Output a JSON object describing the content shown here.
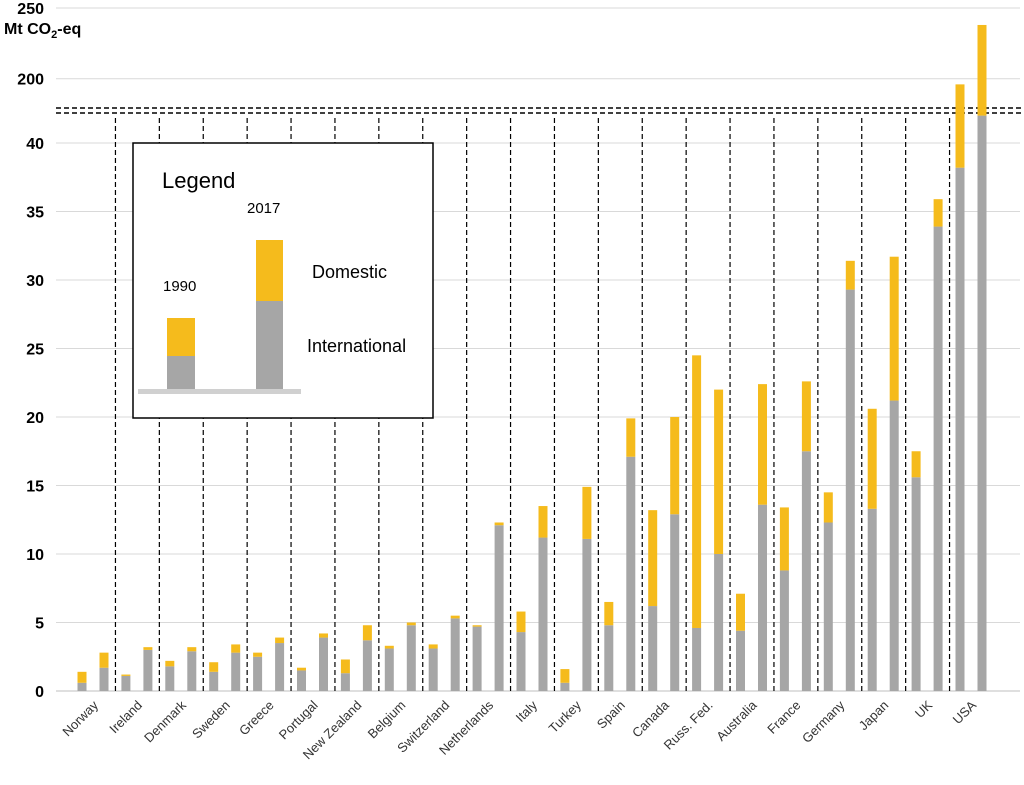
{
  "chart_data": {
    "type": "bar",
    "ylabel": "Mt CO₂-eq",
    "yticks": [
      0,
      5,
      10,
      15,
      20,
      25,
      30,
      35,
      40,
      200,
      250
    ],
    "axis_break": {
      "lower_range": [
        0,
        42
      ],
      "upper_range": [
        180,
        250
      ]
    },
    "grid": true,
    "legend": {
      "title": "Legend",
      "position": "top-left",
      "year_labels": [
        "1990",
        "2017"
      ],
      "components": [
        "Domestic",
        "International"
      ]
    },
    "colors": {
      "International": "#a6a6a6",
      "Domestic": "#f5bb1c",
      "grid": "#d9d9d9"
    },
    "categories": [
      "Norway",
      "Ireland",
      "Denmark",
      "Sweden",
      "Greece",
      "Portugal",
      "New Zealand",
      "Belgium",
      "Switzerland",
      "Netherlands",
      "Italy",
      "Turkey",
      "Spain",
      "Canada",
      "Russ. Fed.",
      "Australia",
      "France",
      "Germany",
      "Japan",
      "UK",
      "USA"
    ],
    "series": [
      {
        "name": "International",
        "values_1990": [
          0.6,
          1.1,
          1.8,
          1.4,
          2.5,
          1.5,
          1.3,
          3.1,
          3.1,
          4.7,
          4.3,
          0.6,
          4.8,
          6.2,
          4.6,
          4.4,
          8.8,
          12.3,
          13.3,
          15.6,
          38.2
        ],
        "values_2017": [
          1.7,
          3.0,
          2.9,
          2.8,
          3.5,
          3.9,
          3.7,
          4.8,
          5.3,
          12.1,
          11.2,
          11.1,
          17.1,
          12.9,
          10.0,
          13.6,
          17.5,
          29.3,
          21.2,
          33.9,
          42
        ]
      },
      {
        "name": "Domestic",
        "values_1990": [
          0.8,
          0.1,
          0.4,
          0.7,
          0.3,
          0.2,
          1.0,
          0.2,
          0.3,
          0.1,
          1.5,
          1.0,
          1.7,
          7.0,
          19.9,
          2.7,
          4.6,
          2.2,
          7.3,
          1.9,
          158
        ],
        "values_2017": [
          1.1,
          0.2,
          0.3,
          0.6,
          0.4,
          0.3,
          1.1,
          0.2,
          0.2,
          0.2,
          2.3,
          3.8,
          2.8,
          7.1,
          12.0,
          8.8,
          5.1,
          2.1,
          10.5,
          2.0,
          196
        ]
      }
    ],
    "totals_upper_region": {
      "USA_1990": 196,
      "USA_2017": 238
    }
  }
}
